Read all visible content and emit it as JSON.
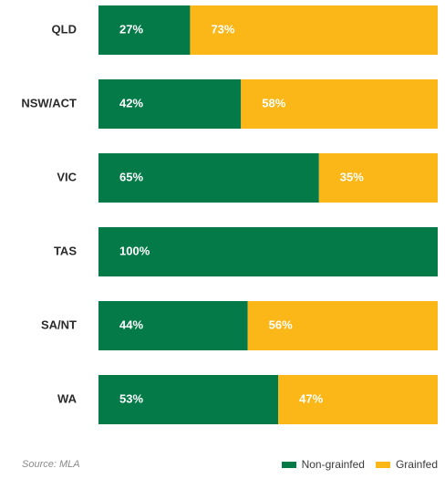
{
  "chart_data": {
    "type": "bar",
    "orientation": "horizontal",
    "stacked": true,
    "categories": [
      "QLD",
      "NSW/ACT",
      "VIC",
      "TAS",
      "SA/NT",
      "WA"
    ],
    "series": [
      {
        "name": "Non-grainfed",
        "values": [
          27,
          42,
          65,
          100,
          44,
          53
        ],
        "labels": [
          "27%",
          "42%",
          "65%",
          "100%",
          "44%",
          "53%"
        ],
        "color": "#047a48"
      },
      {
        "name": "Grainfed",
        "values": [
          73,
          58,
          35,
          0,
          56,
          47
        ],
        "labels": [
          "73%",
          "58%",
          "35%",
          "",
          "56%",
          "47%"
        ],
        "color": "#fbb718"
      }
    ],
    "xlim": [
      0,
      100
    ],
    "grid": false,
    "legend_position": "bottom-right"
  },
  "source": "Source: MLA",
  "legend": {
    "items": [
      {
        "label": "Non-grainfed",
        "color": "#047a48"
      },
      {
        "label": "Grainfed",
        "color": "#fbb718"
      }
    ]
  }
}
